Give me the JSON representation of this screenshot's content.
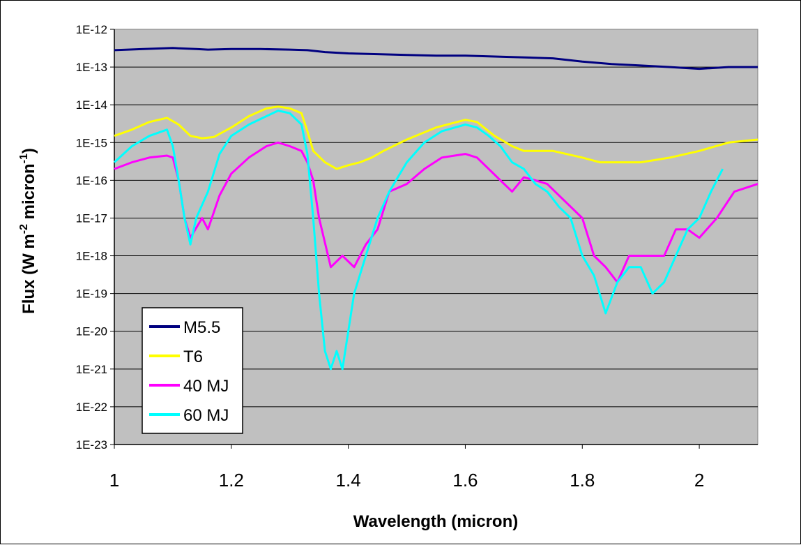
{
  "chart_data": {
    "type": "line",
    "xlabel": "Wavelength (micron)",
    "ylabel": {
      "main": "Flux (W m",
      "sup1": "-2",
      "mid": " micron",
      "sup2": "-1",
      "end": ")"
    },
    "xlim": [
      1.0,
      2.1
    ],
    "ylim_log10": [
      -23,
      -12
    ],
    "yscale": "log",
    "grid": "horizontal",
    "legend_position": "lower-left",
    "x_ticks": [
      1,
      1.2,
      1.4,
      1.6,
      1.8,
      2
    ],
    "x_tick_labels": [
      "1",
      "1.2",
      "1.4",
      "1.6",
      "1.8",
      "2"
    ],
    "y_ticks_log10": [
      -12,
      -13,
      -14,
      -15,
      -16,
      -17,
      -18,
      -19,
      -20,
      -21,
      -22,
      -23
    ],
    "y_tick_labels": [
      "1E-12",
      "1E-13",
      "1E-14",
      "1E-15",
      "1E-16",
      "1E-17",
      "1E-18",
      "1E-19",
      "1E-20",
      "1E-21",
      "1E-22",
      "1E-23"
    ],
    "colors": {
      "plot_bg": "#c0c0c0",
      "grid": "#000000"
    },
    "series": [
      {
        "name": "M5.5",
        "color": "#000080",
        "x": [
          1.0,
          1.05,
          1.1,
          1.14,
          1.16,
          1.2,
          1.25,
          1.3,
          1.33,
          1.36,
          1.4,
          1.45,
          1.5,
          1.55,
          1.6,
          1.65,
          1.7,
          1.75,
          1.8,
          1.85,
          1.9,
          1.95,
          2.0,
          2.05,
          2.1
        ],
        "y": [
          2.8e-13,
          3e-13,
          3.2e-13,
          3e-13,
          2.9e-13,
          3e-13,
          3e-13,
          2.9e-13,
          2.8e-13,
          2.5e-13,
          2.3e-13,
          2.2e-13,
          2.1e-13,
          2e-13,
          2e-13,
          1.9e-13,
          1.8e-13,
          1.7e-13,
          1.4e-13,
          1.2e-13,
          1.1e-13,
          1e-13,
          9e-14,
          1e-13,
          1e-13
        ]
      },
      {
        "name": "T6",
        "color": "#ffff00",
        "x": [
          1.0,
          1.03,
          1.06,
          1.09,
          1.11,
          1.13,
          1.15,
          1.17,
          1.2,
          1.23,
          1.26,
          1.28,
          1.3,
          1.32,
          1.33,
          1.34,
          1.36,
          1.38,
          1.4,
          1.42,
          1.44,
          1.46,
          1.5,
          1.55,
          1.6,
          1.62,
          1.65,
          1.68,
          1.7,
          1.75,
          1.8,
          1.83,
          1.86,
          1.9,
          1.95,
          2.0,
          2.05,
          2.1
        ],
        "y": [
          1.5e-15,
          2.2e-15,
          3.5e-15,
          4.5e-15,
          3e-15,
          1.5e-15,
          1.3e-15,
          1.4e-15,
          2.5e-15,
          5e-15,
          8e-15,
          9e-15,
          8e-15,
          6e-15,
          2e-15,
          6e-16,
          3e-16,
          2e-16,
          2.5e-16,
          3e-16,
          4e-16,
          6e-16,
          1.2e-15,
          2.5e-15,
          4e-15,
          3.5e-15,
          1.5e-15,
          8e-16,
          6e-16,
          6e-16,
          4e-16,
          3e-16,
          3e-16,
          3e-16,
          4e-16,
          6e-16,
          1e-15,
          1.2e-15
        ]
      },
      {
        "name": "40 MJ",
        "color": "#ff00ff",
        "x": [
          1.0,
          1.03,
          1.06,
          1.09,
          1.1,
          1.11,
          1.12,
          1.13,
          1.15,
          1.16,
          1.18,
          1.2,
          1.23,
          1.26,
          1.28,
          1.3,
          1.32,
          1.33,
          1.34,
          1.35,
          1.37,
          1.39,
          1.41,
          1.43,
          1.45,
          1.47,
          1.5,
          1.53,
          1.56,
          1.6,
          1.62,
          1.64,
          1.66,
          1.68,
          1.7,
          1.72,
          1.74,
          1.76,
          1.78,
          1.8,
          1.82,
          1.84,
          1.86,
          1.88,
          1.9,
          1.92,
          1.94,
          1.96,
          1.98,
          2.0,
          2.03,
          2.06,
          2.1
        ],
        "y": [
          2e-16,
          3e-16,
          4e-16,
          4.5e-16,
          4e-16,
          1e-16,
          1e-17,
          3e-18,
          1e-17,
          5e-18,
          4e-17,
          1.5e-16,
          4e-16,
          8e-16,
          1e-15,
          8e-16,
          6e-16,
          3e-16,
          1e-16,
          1e-17,
          5e-19,
          1e-18,
          5e-19,
          2e-18,
          5e-18,
          5e-17,
          8e-17,
          2e-16,
          4e-16,
          5e-16,
          4e-16,
          2e-16,
          1e-16,
          5e-17,
          1.2e-16,
          1e-16,
          8e-17,
          4e-17,
          2e-17,
          1e-17,
          1e-18,
          5e-19,
          2e-19,
          1e-18,
          1e-18,
          1e-18,
          1e-18,
          5e-18,
          5e-18,
          3e-18,
          1e-17,
          5e-17,
          8e-17
        ]
      },
      {
        "name": "60 MJ",
        "color": "#00ffff",
        "x": [
          1.0,
          1.03,
          1.06,
          1.09,
          1.1,
          1.11,
          1.12,
          1.13,
          1.14,
          1.16,
          1.18,
          1.2,
          1.23,
          1.26,
          1.28,
          1.3,
          1.32,
          1.33,
          1.34,
          1.35,
          1.36,
          1.37,
          1.38,
          1.39,
          1.41,
          1.43,
          1.45,
          1.47,
          1.5,
          1.53,
          1.56,
          1.6,
          1.62,
          1.64,
          1.66,
          1.68,
          1.7,
          1.72,
          1.74,
          1.76,
          1.78,
          1.8,
          1.82,
          1.84,
          1.86,
          1.88,
          1.9,
          1.92,
          1.94,
          1.96,
          1.98,
          2.0,
          2.02,
          2.04
        ],
        "y": [
          3e-16,
          8e-16,
          1.5e-15,
          2.2e-15,
          8e-16,
          1e-16,
          1e-17,
          2e-18,
          1e-17,
          5e-17,
          5e-16,
          1.5e-15,
          3e-15,
          5e-15,
          7e-15,
          6e-15,
          3e-15,
          5e-16,
          1e-17,
          1e-19,
          3e-21,
          1e-21,
          3e-21,
          1e-21,
          1e-19,
          1e-18,
          1e-17,
          5e-17,
          3e-16,
          1e-15,
          2e-15,
          3e-15,
          2.5e-15,
          1.5e-15,
          8e-16,
          3e-16,
          2e-16,
          8e-17,
          5e-17,
          2e-17,
          1e-17,
          1e-18,
          3e-19,
          3e-20,
          2e-19,
          5e-19,
          5e-19,
          1e-19,
          2e-19,
          1e-18,
          5e-18,
          1e-17,
          5e-17,
          2e-16
        ]
      }
    ]
  }
}
